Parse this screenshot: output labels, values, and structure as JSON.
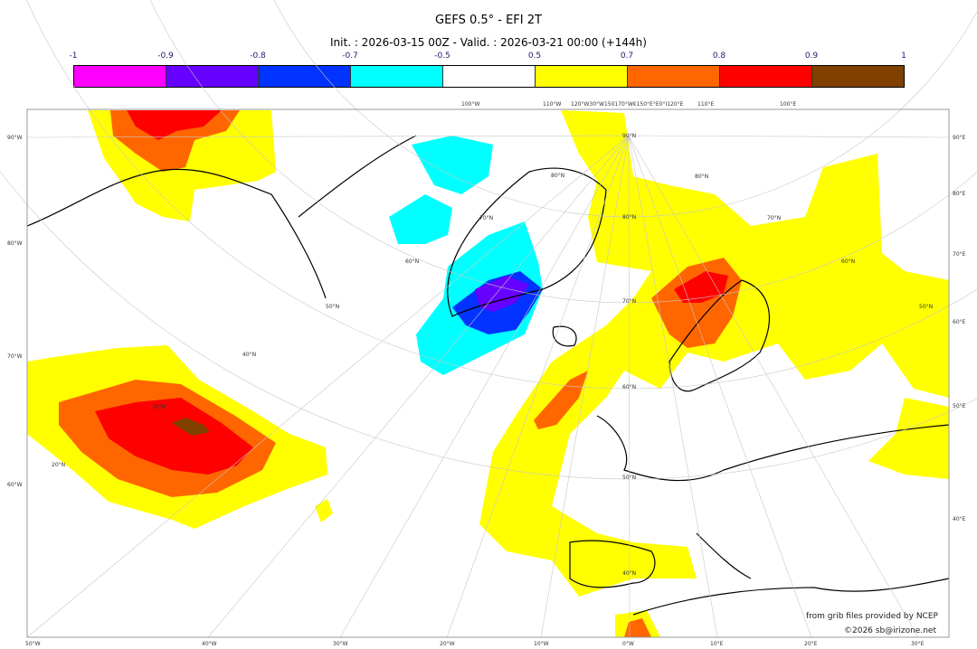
{
  "title": "GEFS 0.5° - EFI 2T",
  "subtitle": "Init. : 2026-03-15 00Z - Valid. : 2026-03-21 00:00 (+144h)",
  "colorbar": {
    "ticks": [
      "-1",
      "-0.9",
      "-0.8",
      "-0.7",
      "-0.5",
      "0.5",
      "0.7",
      "0.8",
      "0.9",
      "1"
    ],
    "colors": [
      "#ff00ff",
      "#6600ff",
      "#0033ff",
      "#00ffff",
      "#ffffff",
      "#ffff00",
      "#ff6600",
      "#ff0000",
      "#804000"
    ]
  },
  "graticule": {
    "left": [
      "90°W",
      "80°W",
      "70°W",
      "60°W"
    ],
    "right": [
      "90°E",
      "80°E",
      "70°E",
      "60°E",
      "50°E",
      "40°E"
    ],
    "bottom": [
      "50°W",
      "40°W",
      "30°W",
      "20°W",
      "10°W",
      "0°W",
      "10°E",
      "20°E",
      "30°E"
    ],
    "top": [
      "100°W",
      "110°W",
      "120°W30°W150170°W€150°E°E0°I120°E",
      "110°E",
      "100°E"
    ],
    "lat_center": [
      "90°N",
      "80°N",
      "70°N",
      "60°N",
      "50°N",
      "40°N"
    ],
    "lat_west": [
      "30°N",
      "20°N",
      "40°N",
      "50°N",
      "60°N",
      "70°N",
      "80°N"
    ],
    "lat_east": [
      "80°N",
      "70°N",
      "60°N",
      "50°N"
    ]
  },
  "credits": {
    "source": "from grib files provided by NCEP",
    "copyright": "©2026 sb@irizone.net"
  }
}
